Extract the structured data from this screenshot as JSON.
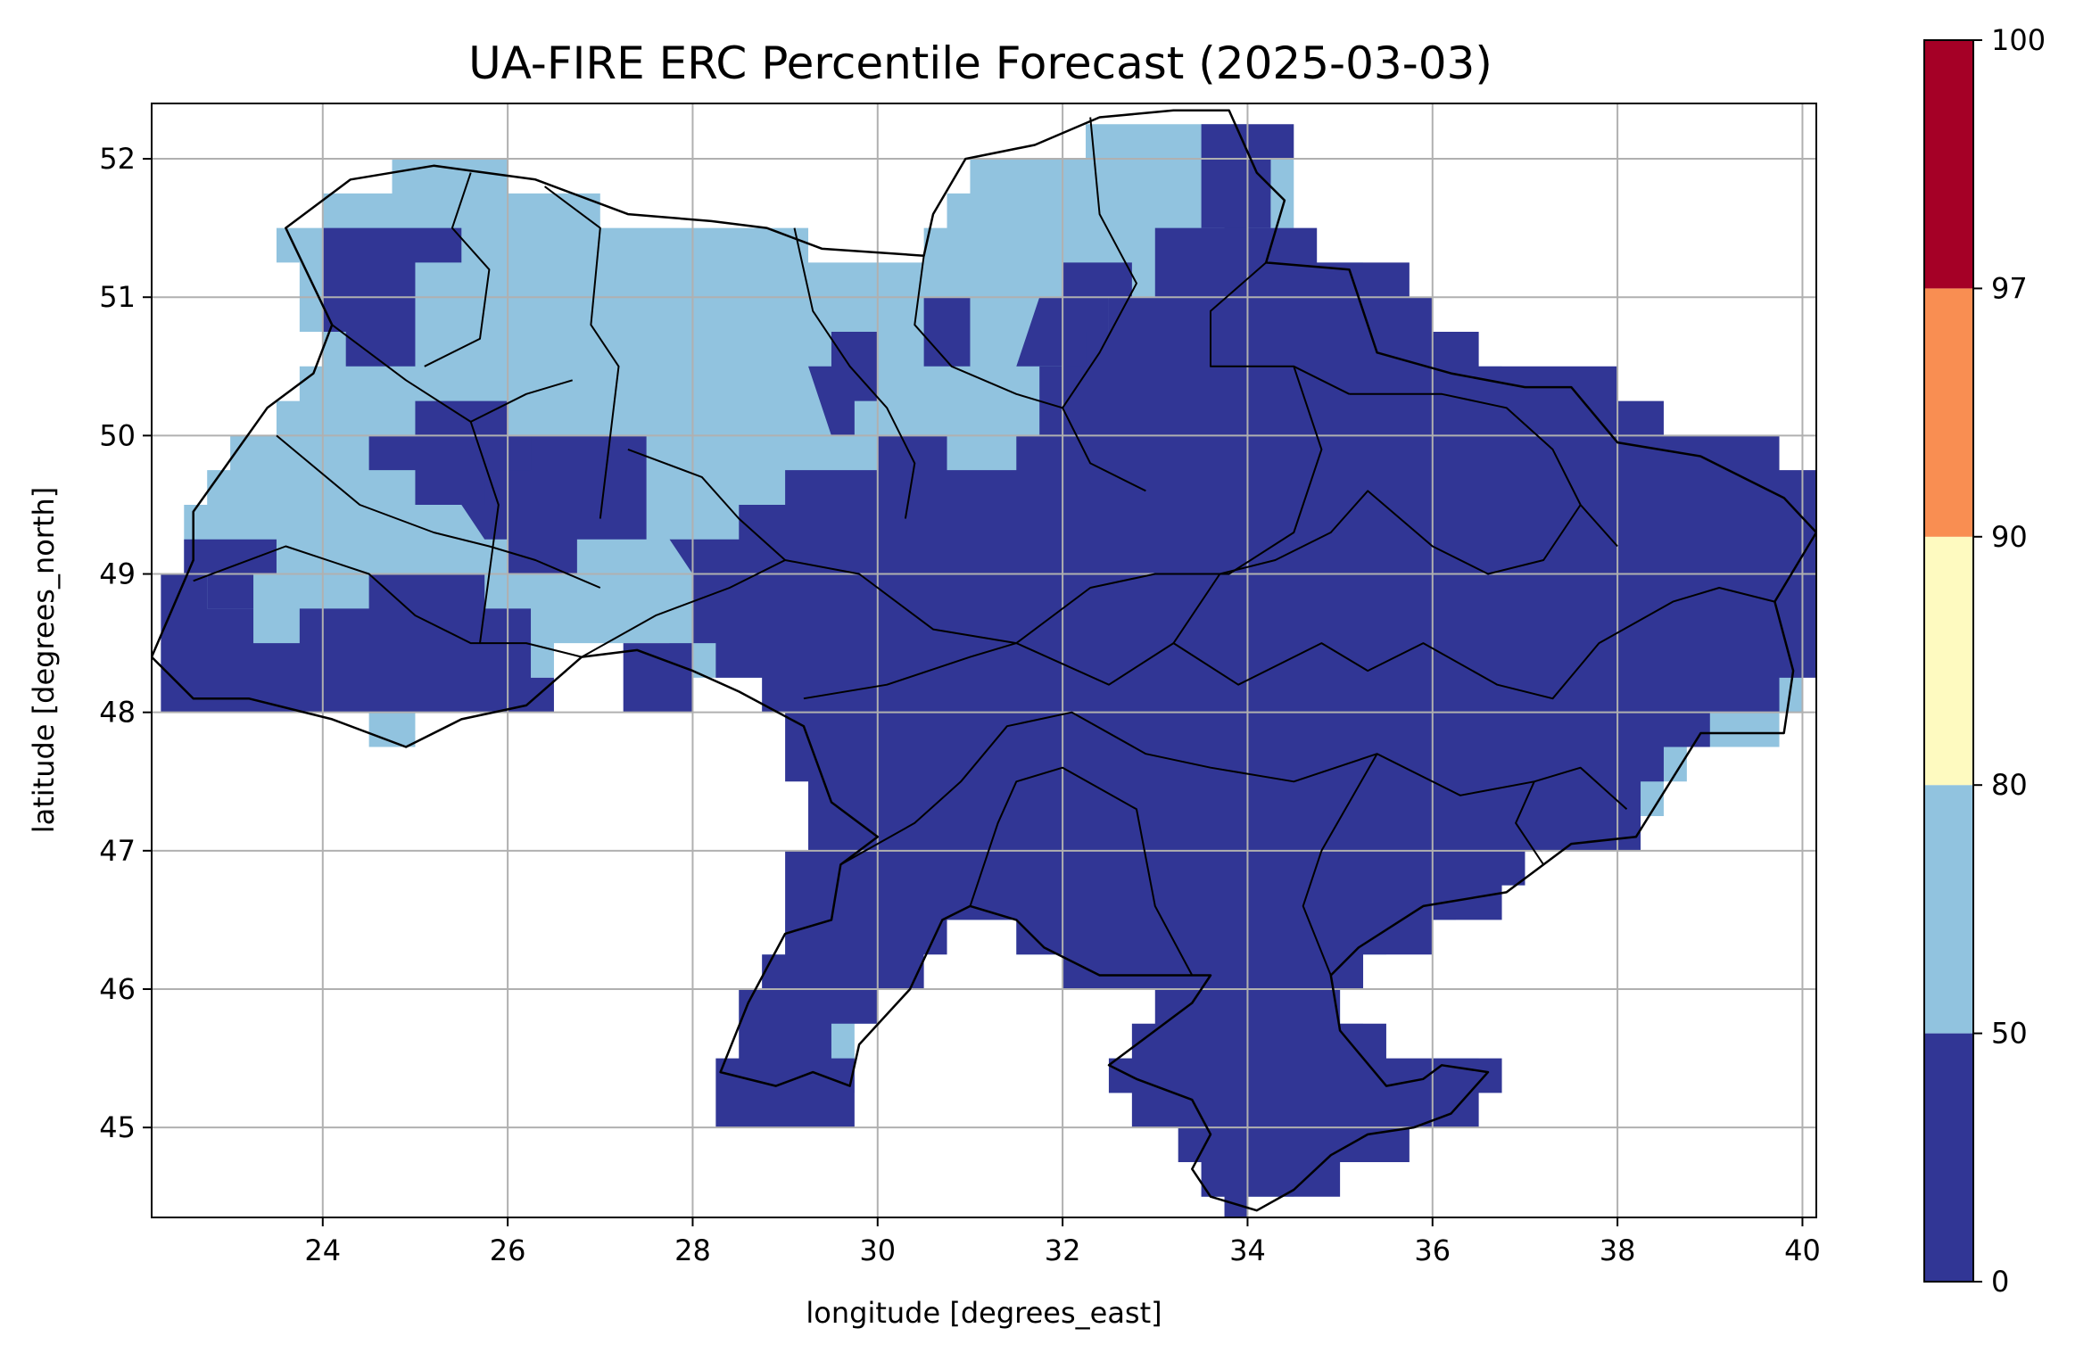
{
  "title": "UA-FIRE ERC Percentile Forecast (2025-03-03)",
  "xlabel": "longitude [degrees_east]",
  "ylabel": "latitude [degrees_north]",
  "map": {
    "lon_range": [
      22.15,
      40.15
    ],
    "lat_range": [
      44.35,
      52.4
    ],
    "grid_cell_deg": 0.25,
    "grid": true,
    "x_ticks": [
      "24",
      "26",
      "28",
      "30",
      "32",
      "34",
      "36",
      "38",
      "40"
    ],
    "x_tick_values": [
      24,
      26,
      28,
      30,
      32,
      34,
      36,
      38,
      40
    ],
    "y_ticks": [
      "45",
      "46",
      "47",
      "48",
      "49",
      "50",
      "51",
      "52"
    ],
    "y_tick_values": [
      45,
      46,
      47,
      48,
      49,
      50,
      51,
      52
    ],
    "colors": {
      "low": "#313695",
      "mid": "#91c3df",
      "border": "#000000",
      "gridline": "#b0b0b0"
    },
    "dark_regions": [
      [
        [
          22.15,
          48.9
        ],
        [
          22.6,
          48.9
        ],
        [
          23.3,
          48.55
        ],
        [
          24.1,
          48.7
        ],
        [
          25.0,
          49.0
        ],
        [
          26.0,
          48.75
        ],
        [
          26.6,
          48.1
        ],
        [
          25.4,
          47.9
        ],
        [
          24.0,
          47.95
        ],
        [
          23.0,
          47.95
        ],
        [
          22.15,
          48.1
        ]
      ],
      [
        [
          22.6,
          49.2
        ],
        [
          23.6,
          49.15
        ],
        [
          23.3,
          48.85
        ],
        [
          22.6,
          48.9
        ]
      ],
      [
        [
          24.1,
          51.4
        ],
        [
          25.1,
          51.55
        ],
        [
          25.4,
          51.25
        ],
        [
          25.0,
          51.0
        ],
        [
          25.0,
          50.6
        ],
        [
          24.6,
          50.45
        ],
        [
          24.1,
          50.75
        ]
      ],
      [
        [
          24.5,
          50.1
        ],
        [
          25.3,
          50.2
        ],
        [
          26.4,
          50.1
        ],
        [
          26.3,
          49.6
        ],
        [
          25.5,
          49.45
        ],
        [
          24.5,
          49.8
        ]
      ],
      [
        [
          25.4,
          49.6
        ],
        [
          26.3,
          49.9
        ],
        [
          26.8,
          49.9
        ],
        [
          27.3,
          50.1
        ],
        [
          27.6,
          49.7
        ],
        [
          27.4,
          49.2
        ],
        [
          26.6,
          49.05
        ],
        [
          25.8,
          49.2
        ]
      ],
      [
        [
          27.3,
          48.45
        ],
        [
          28.0,
          48.45
        ],
        [
          27.9,
          48.1
        ],
        [
          27.3,
          48.1
        ]
      ],
      [
        [
          27.7,
          49.15
        ],
        [
          28.2,
          49.3
        ],
        [
          28.9,
          49.8
        ],
        [
          29.7,
          49.65
        ],
        [
          30.3,
          49.95
        ],
        [
          31.1,
          49.75
        ],
        [
          31.7,
          50.05
        ],
        [
          31.8,
          50.6
        ],
        [
          32.7,
          50.9
        ],
        [
          32.9,
          51.4
        ],
        [
          33.7,
          51.5
        ],
        [
          33.9,
          52.35
        ],
        [
          34.4,
          52.1
        ],
        [
          34.1,
          51.6
        ],
        [
          35.3,
          51.35
        ],
        [
          35.8,
          51.05
        ],
        [
          36.6,
          50.55
        ],
        [
          37.5,
          50.5
        ],
        [
          38.5,
          50.1
        ],
        [
          39.2,
          49.95
        ],
        [
          40.15,
          49.6
        ],
        [
          40.15,
          48.15
        ],
        [
          39.6,
          47.9
        ],
        [
          38.9,
          47.8
        ],
        [
          38.3,
          47.5
        ],
        [
          38.3,
          47.0
        ],
        [
          37.3,
          46.9
        ],
        [
          36.7,
          46.6
        ],
        [
          35.7,
          46.35
        ],
        [
          35.4,
          46.2
        ],
        [
          35.0,
          45.7
        ],
        [
          35.8,
          45.4
        ],
        [
          36.6,
          45.45
        ],
        [
          36.8,
          45.15
        ],
        [
          36.4,
          45.0
        ],
        [
          35.5,
          44.8
        ],
        [
          34.9,
          44.55
        ],
        [
          34.6,
          44.4
        ],
        [
          33.9,
          44.35
        ],
        [
          33.6,
          44.5
        ],
        [
          33.4,
          44.75
        ],
        [
          33.1,
          45.1
        ],
        [
          32.6,
          45.2
        ],
        [
          32.4,
          45.6
        ],
        [
          33.0,
          46.0
        ],
        [
          32.5,
          46.1
        ],
        [
          31.8,
          46.25
        ],
        [
          31.4,
          46.6
        ],
        [
          30.8,
          46.6
        ],
        [
          30.4,
          46.0
        ],
        [
          29.6,
          45.55
        ],
        [
          29.7,
          45.1
        ],
        [
          28.3,
          45.1
        ],
        [
          28.3,
          45.5
        ],
        [
          28.6,
          46.0
        ],
        [
          28.9,
          46.3
        ],
        [
          28.9,
          46.9
        ],
        [
          29.6,
          47.0
        ],
        [
          29.1,
          47.7
        ],
        [
          29.1,
          48.1
        ],
        [
          28.5,
          48.15
        ],
        [
          28.0,
          48.5
        ],
        [
          28.0,
          49.0
        ]
      ],
      [
        [
          31.7,
          51.0
        ],
        [
          32.3,
          51.3
        ],
        [
          32.7,
          51.0
        ],
        [
          32.2,
          50.6
        ],
        [
          31.6,
          50.55
        ]
      ],
      [
        [
          29.3,
          50.45
        ],
        [
          29.8,
          50.8
        ],
        [
          30.1,
          50.4
        ],
        [
          29.8,
          50.1
        ],
        [
          29.5,
          50.1
        ]
      ],
      [
        [
          30.4,
          51.0
        ],
        [
          30.8,
          51.1
        ],
        [
          31.1,
          50.6
        ],
        [
          30.6,
          50.35
        ]
      ],
      [
        [
          33.6,
          52.35
        ],
        [
          33.9,
          52.35
        ],
        [
          34.2,
          51.5
        ],
        [
          33.6,
          51.5
        ]
      ]
    ],
    "ukraine_outline": [
      [
        22.15,
        48.4
      ],
      [
        22.6,
        49.1
      ],
      [
        22.6,
        49.45
      ],
      [
        23.4,
        50.2
      ],
      [
        23.9,
        50.45
      ],
      [
        24.1,
        50.8
      ],
      [
        23.6,
        51.5
      ],
      [
        24.3,
        51.85
      ],
      [
        25.2,
        51.95
      ],
      [
        26.3,
        51.85
      ],
      [
        27.3,
        51.6
      ],
      [
        28.2,
        51.55
      ],
      [
        28.8,
        51.5
      ],
      [
        29.4,
        51.35
      ],
      [
        30.5,
        51.3
      ],
      [
        30.6,
        51.6
      ],
      [
        30.95,
        52.0
      ],
      [
        31.7,
        52.1
      ],
      [
        32.4,
        52.3
      ],
      [
        33.2,
        52.35
      ],
      [
        33.8,
        52.35
      ],
      [
        34.1,
        51.9
      ],
      [
        34.4,
        51.7
      ],
      [
        34.2,
        51.25
      ],
      [
        35.1,
        51.2
      ],
      [
        35.4,
        50.6
      ],
      [
        36.2,
        50.45
      ],
      [
        37.0,
        50.35
      ],
      [
        37.5,
        50.35
      ],
      [
        38.0,
        49.95
      ],
      [
        38.9,
        49.85
      ],
      [
        39.8,
        49.55
      ],
      [
        40.15,
        49.3
      ],
      [
        39.7,
        48.8
      ],
      [
        39.9,
        48.3
      ],
      [
        39.8,
        47.85
      ],
      [
        38.9,
        47.85
      ],
      [
        38.2,
        47.1
      ],
      [
        37.5,
        47.05
      ],
      [
        36.8,
        46.7
      ],
      [
        35.9,
        46.6
      ],
      [
        35.2,
        46.3
      ],
      [
        34.9,
        46.1
      ],
      [
        35.0,
        45.7
      ],
      [
        35.5,
        45.3
      ],
      [
        35.9,
        45.35
      ],
      [
        36.1,
        45.45
      ],
      [
        36.6,
        45.4
      ],
      [
        36.2,
        45.1
      ],
      [
        35.8,
        45.0
      ],
      [
        35.3,
        44.95
      ],
      [
        34.9,
        44.8
      ],
      [
        34.5,
        44.55
      ],
      [
        34.1,
        44.4
      ],
      [
        33.6,
        44.5
      ],
      [
        33.4,
        44.7
      ],
      [
        33.6,
        44.95
      ],
      [
        33.4,
        45.2
      ],
      [
        32.8,
        45.35
      ],
      [
        32.5,
        45.45
      ],
      [
        32.8,
        45.6
      ],
      [
        33.4,
        45.9
      ],
      [
        33.6,
        46.1
      ],
      [
        32.9,
        46.1
      ],
      [
        32.4,
        46.1
      ],
      [
        31.8,
        46.3
      ],
      [
        31.5,
        46.5
      ],
      [
        31.0,
        46.6
      ],
      [
        30.7,
        46.5
      ],
      [
        30.35,
        46.0
      ],
      [
        29.8,
        45.6
      ],
      [
        29.7,
        45.3
      ],
      [
        29.3,
        45.4
      ],
      [
        28.9,
        45.3
      ],
      [
        28.3,
        45.4
      ],
      [
        28.6,
        45.9
      ],
      [
        29.0,
        46.4
      ],
      [
        29.5,
        46.5
      ],
      [
        29.6,
        46.9
      ],
      [
        30.0,
        47.1
      ],
      [
        29.5,
        47.35
      ],
      [
        29.2,
        47.9
      ],
      [
        28.5,
        48.15
      ],
      [
        28.0,
        48.3
      ],
      [
        27.4,
        48.45
      ],
      [
        26.8,
        48.4
      ],
      [
        26.2,
        48.05
      ],
      [
        25.5,
        47.95
      ],
      [
        24.9,
        47.75
      ],
      [
        24.1,
        47.95
      ],
      [
        23.2,
        48.1
      ],
      [
        22.6,
        48.1
      ],
      [
        22.15,
        48.4
      ]
    ],
    "oblast_lines": [
      [
        [
          24.1,
          50.8
        ],
        [
          24.9,
          50.4
        ],
        [
          25.6,
          50.1
        ],
        [
          26.2,
          50.3
        ],
        [
          26.7,
          50.4
        ]
      ],
      [
        [
          25.6,
          51.9
        ],
        [
          25.4,
          51.5
        ],
        [
          25.8,
          51.2
        ],
        [
          25.7,
          50.7
        ],
        [
          25.1,
          50.5
        ]
      ],
      [
        [
          26.4,
          51.8
        ],
        [
          27.0,
          51.5
        ],
        [
          26.9,
          50.8
        ],
        [
          27.2,
          50.5
        ],
        [
          27.1,
          49.95
        ],
        [
          27.0,
          49.4
        ]
      ],
      [
        [
          29.1,
          51.5
        ],
        [
          29.3,
          50.9
        ],
        [
          29.7,
          50.5
        ],
        [
          30.1,
          50.2
        ],
        [
          30.4,
          49.8
        ],
        [
          30.3,
          49.4
        ]
      ],
      [
        [
          30.5,
          51.3
        ],
        [
          30.4,
          50.8
        ],
        [
          30.8,
          50.5
        ],
        [
          31.5,
          50.3
        ],
        [
          32.0,
          50.2
        ],
        [
          32.3,
          49.8
        ],
        [
          32.9,
          49.6
        ]
      ],
      [
        [
          32.3,
          52.3
        ],
        [
          32.4,
          51.6
        ],
        [
          32.8,
          51.1
        ],
        [
          32.4,
          50.6
        ],
        [
          32.0,
          50.2
        ]
      ],
      [
        [
          34.2,
          51.25
        ],
        [
          33.6,
          50.9
        ],
        [
          33.6,
          50.5
        ],
        [
          34.5,
          50.5
        ],
        [
          35.1,
          50.3
        ]
      ],
      [
        [
          35.1,
          50.3
        ],
        [
          36.1,
          50.3
        ],
        [
          36.8,
          50.2
        ],
        [
          37.3,
          49.9
        ],
        [
          37.6,
          49.5
        ],
        [
          38.0,
          49.2
        ]
      ],
      [
        [
          34.5,
          50.5
        ],
        [
          34.8,
          49.9
        ],
        [
          34.5,
          49.3
        ],
        [
          33.8,
          49.0
        ],
        [
          33.0,
          49.0
        ],
        [
          32.3,
          48.9
        ],
        [
          31.5,
          48.5
        ]
      ],
      [
        [
          22.6,
          48.95
        ],
        [
          23.6,
          49.2
        ],
        [
          24.5,
          49.0
        ],
        [
          25.0,
          48.7
        ],
        [
          25.6,
          48.5
        ],
        [
          26.2,
          48.5
        ],
        [
          26.8,
          48.4
        ]
      ],
      [
        [
          23.5,
          50.0
        ],
        [
          24.4,
          49.5
        ],
        [
          25.2,
          49.3
        ],
        [
          25.8,
          49.2
        ],
        [
          26.3,
          49.1
        ],
        [
          27.0,
          48.9
        ]
      ],
      [
        [
          25.6,
          50.1
        ],
        [
          25.9,
          49.5
        ],
        [
          25.8,
          49.0
        ],
        [
          25.7,
          48.5
        ]
      ],
      [
        [
          26.8,
          48.4
        ],
        [
          27.6,
          48.7
        ],
        [
          28.4,
          48.9
        ],
        [
          29.0,
          49.1
        ],
        [
          29.8,
          49.0
        ],
        [
          30.6,
          48.6
        ],
        [
          31.5,
          48.5
        ]
      ],
      [
        [
          27.3,
          49.9
        ],
        [
          28.1,
          49.7
        ],
        [
          28.5,
          49.4
        ],
        [
          29.0,
          49.1
        ]
      ],
      [
        [
          29.2,
          48.1
        ],
        [
          30.1,
          48.2
        ],
        [
          31.0,
          48.4
        ],
        [
          31.5,
          48.5
        ]
      ],
      [
        [
          29.6,
          46.9
        ],
        [
          30.4,
          47.2
        ],
        [
          30.9,
          47.5
        ],
        [
          31.4,
          47.9
        ],
        [
          32.1,
          48.0
        ],
        [
          32.9,
          47.7
        ],
        [
          33.6,
          47.6
        ],
        [
          34.5,
          47.5
        ],
        [
          35.4,
          47.7
        ],
        [
          36.3,
          47.4
        ],
        [
          37.1,
          47.5
        ],
        [
          37.6,
          47.6
        ],
        [
          38.1,
          47.3
        ]
      ],
      [
        [
          31.5,
          48.5
        ],
        [
          32.5,
          48.2
        ],
        [
          33.2,
          48.5
        ],
        [
          33.9,
          48.2
        ],
        [
          34.8,
          48.5
        ],
        [
          35.3,
          48.3
        ],
        [
          35.9,
          48.5
        ],
        [
          36.7,
          48.2
        ],
        [
          37.3,
          48.1
        ],
        [
          37.8,
          48.5
        ],
        [
          38.6,
          48.8
        ],
        [
          39.1,
          48.9
        ],
        [
          39.7,
          48.8
        ]
      ],
      [
        [
          33.2,
          48.5
        ],
        [
          33.7,
          49.0
        ],
        [
          34.3,
          49.1
        ],
        [
          34.9,
          49.3
        ],
        [
          35.3,
          49.6
        ],
        [
          36.0,
          49.2
        ],
        [
          36.6,
          49.0
        ],
        [
          37.2,
          49.1
        ],
        [
          37.6,
          49.5
        ]
      ],
      [
        [
          31.0,
          46.6
        ],
        [
          31.3,
          47.2
        ],
        [
          31.5,
          47.5
        ],
        [
          32.0,
          47.6
        ],
        [
          32.8,
          47.3
        ],
        [
          33.0,
          46.6
        ],
        [
          33.4,
          46.1
        ]
      ],
      [
        [
          34.9,
          46.1
        ],
        [
          34.6,
          46.6
        ],
        [
          34.8,
          47.0
        ],
        [
          35.4,
          47.7
        ]
      ],
      [
        [
          37.1,
          47.5
        ],
        [
          36.9,
          47.2
        ],
        [
          37.2,
          46.9
        ]
      ]
    ]
  },
  "colorbar": {
    "boundaries": [
      0,
      50,
      80,
      90,
      97,
      100
    ],
    "tick_labels": [
      "0",
      "50",
      "80",
      "90",
      "97",
      "100"
    ],
    "colors": [
      "#313695",
      "#91c3df",
      "#fefac0",
      "#f98e52",
      "#a50026"
    ]
  }
}
